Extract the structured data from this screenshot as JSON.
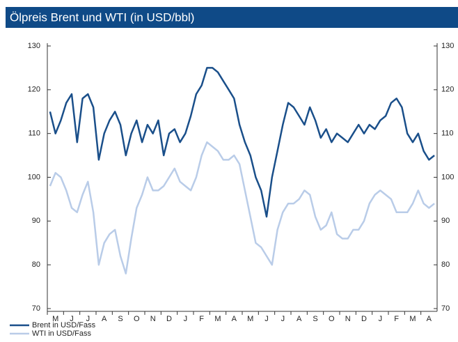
{
  "chart_data": {
    "type": "line",
    "title": "Ölpreis Brent und WTI (in USD/bbl)",
    "categories": [
      null,
      "M",
      null,
      null,
      "J",
      null,
      null,
      "J",
      null,
      null,
      "A",
      null,
      null,
      "S",
      null,
      null,
      "O",
      null,
      null,
      "N",
      null,
      null,
      "D",
      null,
      null,
      "J",
      null,
      null,
      "F",
      null,
      null,
      "M",
      null,
      null,
      "A",
      null,
      null,
      "M",
      null,
      null,
      "J",
      null,
      null,
      "J",
      null,
      null,
      "A",
      null,
      null,
      "S",
      null,
      null,
      "O",
      null,
      null,
      "N",
      null,
      null,
      "D",
      null,
      null,
      "J",
      null,
      null,
      "F",
      null,
      null,
      "M",
      null,
      null,
      "A",
      null
    ],
    "series": [
      {
        "name": "Brent in USD/Fass",
        "color": "#1a4f8a",
        "values": [
          115,
          110,
          113,
          117,
          119,
          108,
          118,
          119,
          116,
          104,
          110,
          113,
          115,
          112,
          105,
          110,
          113,
          108,
          112,
          110,
          113,
          105,
          110,
          111,
          108,
          110,
          114,
          119,
          121,
          125,
          125,
          124,
          122,
          120,
          118,
          112,
          108,
          105,
          100,
          97,
          91,
          100,
          106,
          112,
          117,
          116,
          114,
          112,
          116,
          113,
          109,
          111,
          108,
          110,
          109,
          108,
          110,
          112,
          110,
          112,
          111,
          113,
          114,
          117,
          118,
          116,
          110,
          108,
          110,
          106,
          104,
          105
        ]
      },
      {
        "name": "WTI in USD/Fass",
        "color": "#b9cce8",
        "values": [
          98,
          101,
          100,
          97,
          93,
          92,
          96,
          99,
          92,
          80,
          85,
          87,
          88,
          82,
          78,
          86,
          93,
          96,
          100,
          97,
          97,
          98,
          100,
          102,
          99,
          98,
          97,
          100,
          105,
          108,
          107,
          106,
          104,
          104,
          105,
          103,
          97,
          91,
          85,
          84,
          82,
          80,
          88,
          92,
          94,
          94,
          95,
          97,
          96,
          91,
          88,
          89,
          92,
          87,
          86,
          86,
          88,
          88,
          90,
          94,
          96,
          97,
          96,
          95,
          92,
          92,
          92,
          94,
          97,
          94,
          93,
          94
        ]
      }
    ],
    "ylim": [
      70,
      130
    ],
    "yticks": [
      70,
      80,
      90,
      100,
      110,
      120,
      130
    ],
    "y2lim": [
      70,
      130
    ],
    "y2ticks": [
      70,
      80,
      90,
      100,
      110,
      120,
      130
    ]
  }
}
